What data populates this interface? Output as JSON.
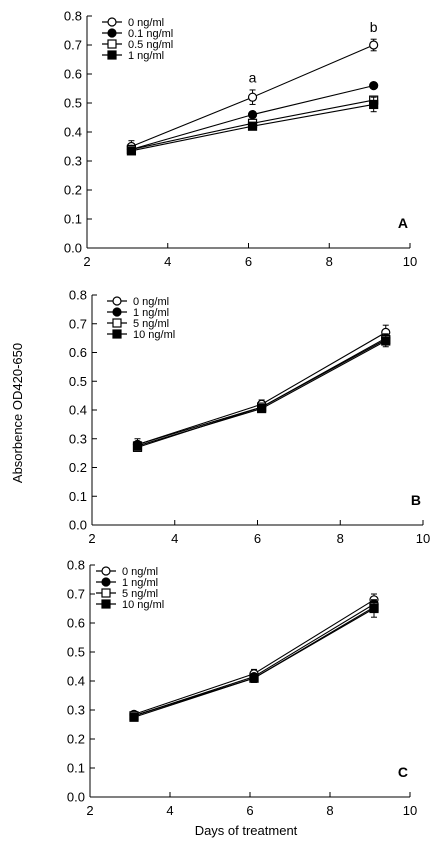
{
  "ylabel": "Absorbence OD420-650",
  "xlabel": "Days of treatment",
  "chart_data": [
    {
      "type": "line",
      "panel_label": "A",
      "x": [
        3.1,
        6.1,
        9.1
      ],
      "xlim": [
        2,
        10
      ],
      "ylim": [
        0,
        0.8
      ],
      "xticks": [
        "2",
        "4",
        "6",
        "8",
        "10"
      ],
      "yticks": [
        "0.0",
        "0.1",
        "0.2",
        "0.3",
        "0.4",
        "0.5",
        "0.6",
        "0.7",
        "0.8"
      ],
      "grid": false,
      "legend_position": "top-left",
      "series": [
        {
          "name": "0 ng/ml",
          "marker": "open-circle",
          "values": [
            0.35,
            0.52,
            0.7
          ],
          "errors": [
            0.02,
            0.025,
            0.02
          ]
        },
        {
          "name": "0.1 ng/ml",
          "marker": "filled-circle",
          "values": [
            0.34,
            0.46,
            0.56
          ],
          "errors": [
            0.01,
            0.01,
            0.01
          ]
        },
        {
          "name": "0.5 ng/ml",
          "marker": "open-square",
          "values": [
            0.34,
            0.43,
            0.51
          ],
          "errors": [
            0.01,
            0.01,
            0.01
          ]
        },
        {
          "name": "1 ng/ml",
          "marker": "filled-square",
          "values": [
            0.335,
            0.42,
            0.495
          ],
          "errors": [
            0.01,
            0.01,
            0.025
          ]
        }
      ],
      "annotations": [
        {
          "text": "a",
          "x": 6.1,
          "y": 0.57
        },
        {
          "text": "b",
          "x": 9.1,
          "y": 0.745
        }
      ]
    },
    {
      "type": "line",
      "panel_label": "B",
      "x": [
        3.1,
        6.1,
        9.1
      ],
      "xlim": [
        2,
        10
      ],
      "ylim": [
        0,
        0.8
      ],
      "xticks": [
        "2",
        "4",
        "6",
        "8",
        "10"
      ],
      "yticks": [
        "0.0",
        "0.1",
        "0.2",
        "0.3",
        "0.4",
        "0.5",
        "0.6",
        "0.7",
        "0.8"
      ],
      "grid": false,
      "legend_position": "top-left",
      "series": [
        {
          "name": "0 ng/ml",
          "marker": "open-circle",
          "values": [
            0.28,
            0.42,
            0.67
          ],
          "errors": [
            0.02,
            0.015,
            0.025
          ]
        },
        {
          "name": "1 ng/ml",
          "marker": "filled-circle",
          "values": [
            0.28,
            0.41,
            0.65
          ],
          "errors": [
            0.01,
            0.01,
            0.015
          ]
        },
        {
          "name": "5 ng/ml",
          "marker": "open-square",
          "values": [
            0.27,
            0.41,
            0.645
          ],
          "errors": [
            0.01,
            0.01,
            0.015
          ]
        },
        {
          "name": "10 ng/ml",
          "marker": "filled-square",
          "values": [
            0.275,
            0.405,
            0.64
          ],
          "errors": [
            0.015,
            0.01,
            0.02
          ]
        }
      ],
      "annotations": []
    },
    {
      "type": "line",
      "panel_label": "C",
      "x": [
        3.1,
        6.1,
        9.1
      ],
      "xlim": [
        2,
        10
      ],
      "ylim": [
        0,
        0.8
      ],
      "xticks": [
        "2",
        "4",
        "6",
        "8",
        "10"
      ],
      "yticks": [
        "0.0",
        "0.1",
        "0.2",
        "0.3",
        "0.4",
        "0.5",
        "0.6",
        "0.7",
        "0.8"
      ],
      "grid": false,
      "legend_position": "top-left",
      "series": [
        {
          "name": "0 ng/ml",
          "marker": "open-circle",
          "values": [
            0.285,
            0.425,
            0.68
          ],
          "errors": [
            0.01,
            0.015,
            0.02
          ]
        },
        {
          "name": "1 ng/ml",
          "marker": "filled-circle",
          "values": [
            0.28,
            0.415,
            0.665
          ],
          "errors": [
            0.01,
            0.01,
            0.015
          ]
        },
        {
          "name": "5 ng/ml",
          "marker": "open-square",
          "values": [
            0.28,
            0.41,
            0.655
          ],
          "errors": [
            0.01,
            0.01,
            0.015
          ]
        },
        {
          "name": "10 ng/ml",
          "marker": "filled-square",
          "values": [
            0.275,
            0.41,
            0.65
          ],
          "errors": [
            0.01,
            0.015,
            0.03
          ]
        }
      ],
      "annotations": []
    }
  ]
}
